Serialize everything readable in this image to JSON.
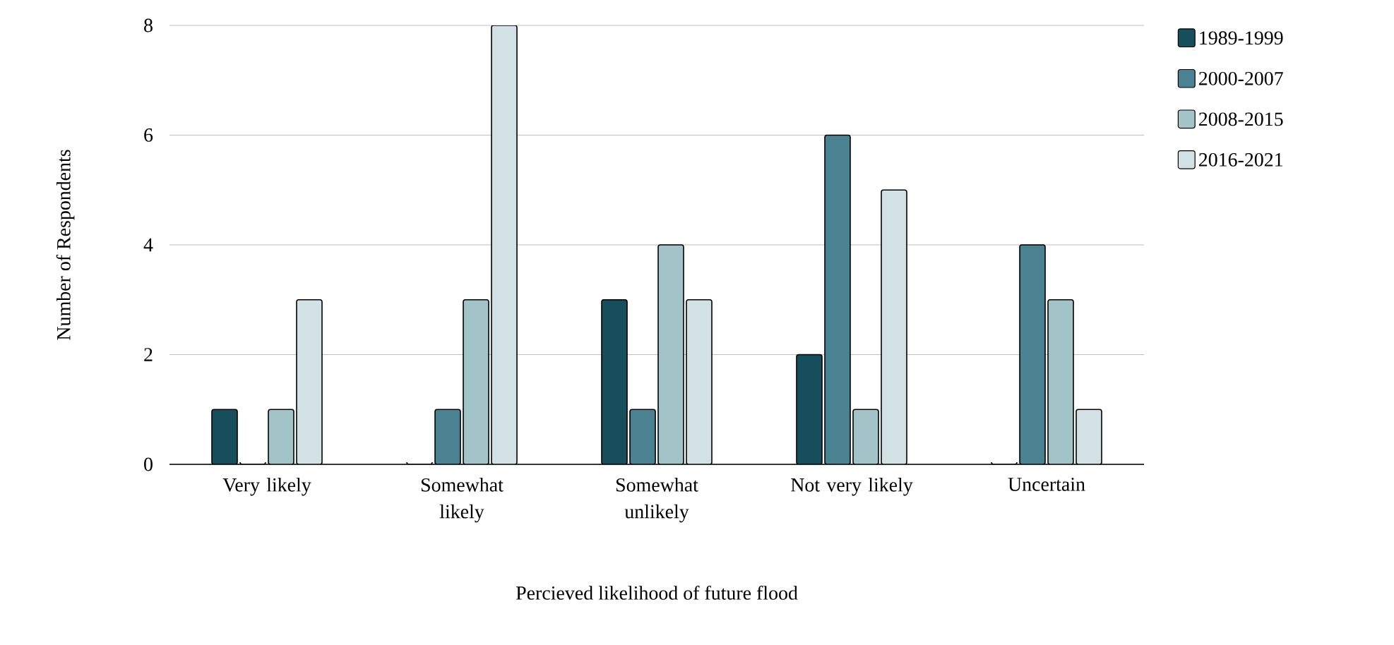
{
  "chart_data": {
    "type": "bar",
    "xlabel": "Percieved likelihood of future flood",
    "ylabel": "Number of Respondents",
    "categories": [
      "Very likely",
      "Somewhat likely",
      "Somewhat unlikely",
      "Not very likely",
      "Uncertain"
    ],
    "series": [
      {
        "name": "1989-1999",
        "color": "#164e5b",
        "values": [
          1,
          0,
          3,
          2,
          0
        ]
      },
      {
        "name": "2000-2007",
        "color": "#4a8291",
        "values": [
          0,
          1,
          1,
          6,
          4
        ]
      },
      {
        "name": "2008-2015",
        "color": "#a2c3c8",
        "values": [
          1,
          3,
          4,
          1,
          3
        ]
      },
      {
        "name": "2016-2021",
        "color": "#d2e1e4",
        "values": [
          3,
          8,
          3,
          5,
          1
        ]
      }
    ],
    "ylim": [
      0,
      8
    ],
    "yticks": [
      0,
      2,
      4,
      6,
      8
    ],
    "grid": "y",
    "legend": "right"
  }
}
